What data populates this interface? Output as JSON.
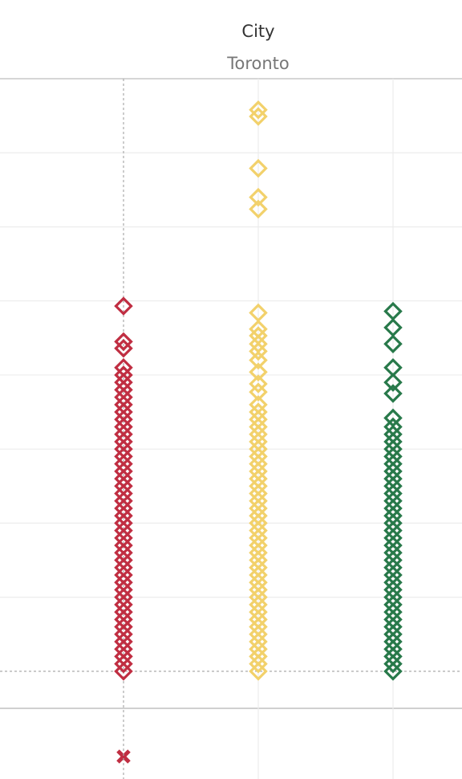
{
  "chart_data": {
    "type": "strip",
    "header": "City",
    "title": "Toronto",
    "ylim": [
      -0.5,
      8
    ],
    "yticks": [
      0,
      1,
      2,
      3,
      4,
      5,
      6,
      7,
      8
    ],
    "grid": true,
    "series": [
      {
        "color": "#c02e42",
        "values": [
          0,
          0.1,
          0.2,
          0.3,
          0.4,
          0.5,
          0.6,
          0.7,
          0.8,
          0.9,
          1,
          1.1,
          1.2,
          1.3,
          1.4,
          1.5,
          1.6,
          1.7,
          1.8,
          1.9,
          2,
          2.1,
          2.2,
          2.3,
          2.4,
          2.5,
          2.6,
          2.7,
          2.8,
          2.9,
          3,
          3.1,
          3.2,
          3.3,
          3.4,
          3.5,
          3.6,
          3.7,
          3.8,
          3.9,
          4,
          4.1,
          4.36,
          4.45,
          4.93
        ]
      },
      {
        "color": "#f2d16b",
        "values": [
          0,
          0.1,
          0.2,
          0.3,
          0.4,
          0.5,
          0.6,
          0.7,
          0.8,
          0.9,
          1,
          1.1,
          1.2,
          1.3,
          1.4,
          1.5,
          1.6,
          1.7,
          1.8,
          1.9,
          2,
          2.1,
          2.2,
          2.3,
          2.4,
          2.5,
          2.6,
          2.7,
          2.8,
          2.9,
          3,
          3.1,
          3.2,
          3.3,
          3.4,
          3.5,
          3.6,
          3.77,
          3.88,
          4.04,
          4.2,
          4.32,
          4.42,
          4.53,
          4.62,
          4.84,
          6.24,
          6.4,
          6.79,
          7.49,
          7.58
        ]
      },
      {
        "color": "#28794a",
        "values": [
          0,
          0.1,
          0.2,
          0.3,
          0.4,
          0.5,
          0.6,
          0.7,
          0.8,
          0.9,
          1,
          1.1,
          1.2,
          1.3,
          1.4,
          1.5,
          1.6,
          1.7,
          1.8,
          1.9,
          2,
          2.1,
          2.2,
          2.3,
          2.4,
          2.5,
          2.6,
          2.7,
          2.8,
          2.9,
          3,
          3.1,
          3.2,
          3.3,
          3.42,
          3.75,
          3.9,
          4.1,
          4.42,
          4.64,
          4.86
        ]
      }
    ]
  }
}
